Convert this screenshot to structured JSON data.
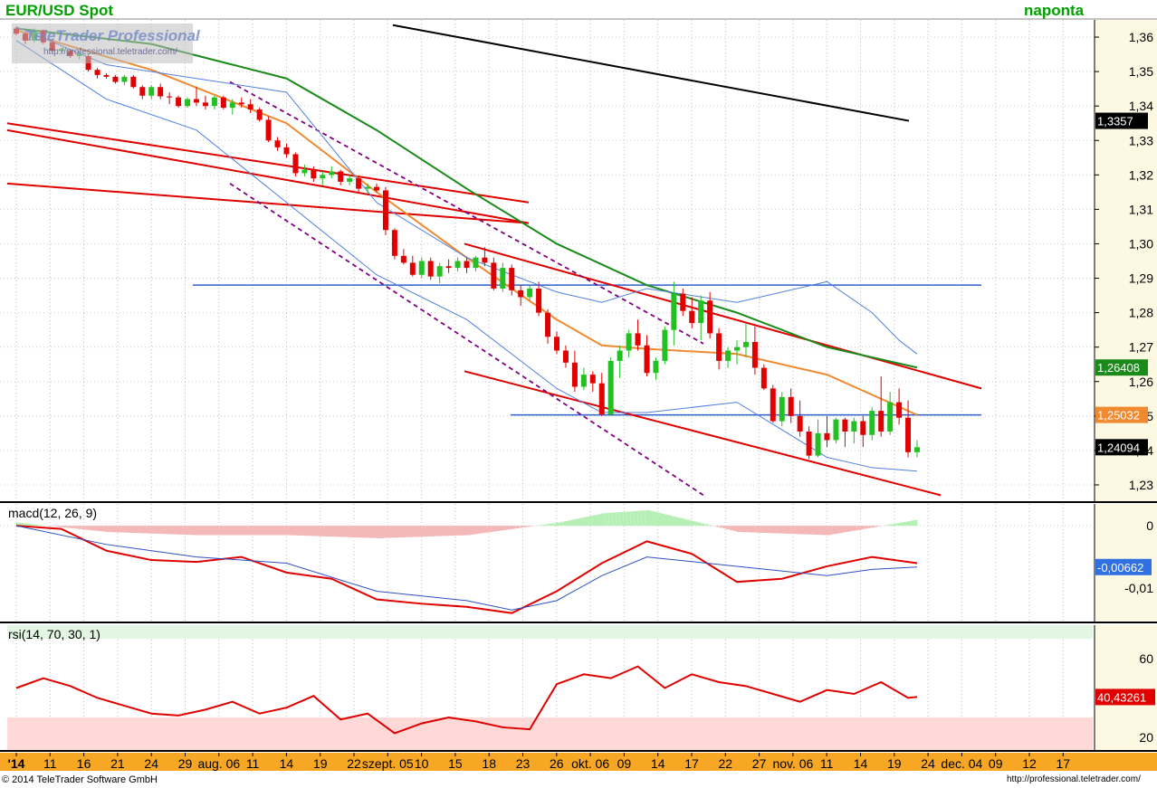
{
  "header": {
    "title": "EUR/USD Spot",
    "subtitle": "naponta",
    "watermark_line1": "TeleTrader Professional",
    "watermark_line2": "http://professional.teletrader.com/"
  },
  "footer": {
    "copyright": "© 2014  TeleTrader Software GmbH",
    "url": "http://professional.teletrader.com/"
  },
  "colors": {
    "bull": "#22c022",
    "bear": "#e00000",
    "price_axis_bg": "#fdf8e2",
    "date_axis_bg": "#f7a723",
    "channel": "#e00000",
    "dashed_channel": "#800080",
    "horizontal_line": "#3060d0",
    "sma_black": "#000000",
    "sma_green": "#1a8a1a",
    "sma_orange": "#f08a30",
    "bollinger": "#5080e0"
  },
  "chart_data": [
    {
      "type": "candlestick",
      "name": "price",
      "title": "EUR/USD Spot",
      "ylim": [
        1.225,
        1.365
      ],
      "ylabel": "",
      "yticks": [
        "1,23",
        "1,24",
        "1,25",
        "1,26",
        "1,27",
        "1,28",
        "1,29",
        "1,30",
        "1,31",
        "1,32",
        "1,33",
        "1,34",
        "1,35",
        "1,36"
      ],
      "xticks": [
        "'14",
        "11",
        "16",
        "21",
        "24",
        "29",
        "aug. 06",
        "11",
        "14",
        "19",
        "22",
        "szept. 05",
        "10",
        "15",
        "18",
        "23",
        "26",
        "okt. 06",
        "09",
        "14",
        "17",
        "22",
        "27",
        "nov. 06",
        "11",
        "14",
        "19",
        "24",
        "dec. 04",
        "09",
        "12",
        "17"
      ],
      "candles": [
        [
          1.3625,
          1.363,
          1.3605,
          1.361
        ],
        [
          1.361,
          1.3615,
          1.358,
          1.359
        ],
        [
          1.359,
          1.3625,
          1.3585,
          1.362
        ],
        [
          1.362,
          1.3622,
          1.358,
          1.3585
        ],
        [
          1.3585,
          1.359,
          1.3555,
          1.356
        ],
        [
          1.356,
          1.357,
          1.3555,
          1.3565
        ],
        [
          1.356,
          1.3565,
          1.354,
          1.3545
        ],
        [
          1.3545,
          1.356,
          1.3535,
          1.355
        ],
        [
          1.3545,
          1.355,
          1.35,
          1.3505
        ],
        [
          1.3505,
          1.351,
          1.348,
          1.349
        ],
        [
          1.349,
          1.3495,
          1.348,
          1.3485
        ],
        [
          1.3485,
          1.349,
          1.3465,
          1.347
        ],
        [
          1.347,
          1.349,
          1.346,
          1.3485
        ],
        [
          1.3485,
          1.349,
          1.345,
          1.3455
        ],
        [
          1.3455,
          1.346,
          1.342,
          1.343
        ],
        [
          1.343,
          1.346,
          1.342,
          1.3455
        ],
        [
          1.3455,
          1.3465,
          1.342,
          1.3428
        ],
        [
          1.3428,
          1.344,
          1.3405,
          1.3425
        ],
        [
          1.3425,
          1.343,
          1.3395,
          1.34
        ],
        [
          1.34,
          1.3425,
          1.3395,
          1.342
        ],
        [
          1.342,
          1.3455,
          1.34,
          1.341
        ],
        [
          1.341,
          1.343,
          1.339,
          1.34
        ],
        [
          1.34,
          1.343,
          1.339,
          1.3425
        ],
        [
          1.3425,
          1.343,
          1.339,
          1.3395
        ],
        [
          1.3395,
          1.342,
          1.3375,
          1.341
        ],
        [
          1.341,
          1.3425,
          1.3395,
          1.3405
        ],
        [
          1.3405,
          1.342,
          1.338,
          1.339
        ],
        [
          1.339,
          1.3395,
          1.3355,
          1.336
        ],
        [
          1.336,
          1.337,
          1.3295,
          1.33
        ],
        [
          1.33,
          1.331,
          1.327,
          1.328
        ],
        [
          1.328,
          1.329,
          1.325,
          1.326
        ],
        [
          1.326,
          1.3265,
          1.3195,
          1.3205
        ],
        [
          1.3205,
          1.323,
          1.3195,
          1.3215
        ],
        [
          1.3215,
          1.3225,
          1.318,
          1.319
        ],
        [
          1.319,
          1.321,
          1.317,
          1.32
        ],
        [
          1.32,
          1.3225,
          1.319,
          1.321
        ],
        [
          1.321,
          1.3215,
          1.317,
          1.318
        ],
        [
          1.318,
          1.32,
          1.317,
          1.319
        ],
        [
          1.319,
          1.3195,
          1.315,
          1.316
        ],
        [
          1.316,
          1.3175,
          1.3145,
          1.3165
        ],
        [
          1.3165,
          1.3175,
          1.315,
          1.3155
        ],
        [
          1.3155,
          1.3165,
          1.3025,
          1.304
        ],
        [
          1.304,
          1.3045,
          1.2955,
          1.2965
        ],
        [
          1.2965,
          1.2985,
          1.294,
          1.2945
        ],
        [
          1.2945,
          1.2965,
          1.2905,
          1.291
        ],
        [
          1.291,
          1.296,
          1.29,
          1.295
        ],
        [
          1.295,
          1.296,
          1.2895,
          1.2905
        ],
        [
          1.2905,
          1.2945,
          1.2885,
          1.2935
        ],
        [
          1.2935,
          1.2955,
          1.2915,
          1.293
        ],
        [
          1.293,
          1.296,
          1.292,
          1.295
        ],
        [
          1.295,
          1.296,
          1.2915,
          1.293
        ],
        [
          1.293,
          1.2965,
          1.292,
          1.296
        ],
        [
          1.296,
          1.299,
          1.2935,
          1.2945
        ],
        [
          1.2945,
          1.296,
          1.2865,
          1.287
        ],
        [
          1.287,
          1.2945,
          1.286,
          1.293
        ],
        [
          1.293,
          1.294,
          1.285,
          1.2865
        ],
        [
          1.2865,
          1.288,
          1.282,
          1.2845
        ],
        [
          1.2845,
          1.288,
          1.2835,
          1.287
        ],
        [
          1.287,
          1.289,
          1.279,
          1.28
        ],
        [
          1.28,
          1.281,
          1.271,
          1.273
        ],
        [
          1.273,
          1.2745,
          1.268,
          1.269
        ],
        [
          1.269,
          1.2705,
          1.264,
          1.2655
        ],
        [
          1.2655,
          1.269,
          1.257,
          1.2585
        ],
        [
          1.2585,
          1.264,
          1.2575,
          1.262
        ],
        [
          1.262,
          1.263,
          1.257,
          1.2595
        ],
        [
          1.2595,
          1.2625,
          1.25,
          1.2505
        ],
        [
          1.2505,
          1.267,
          1.25,
          1.266
        ],
        [
          1.266,
          1.2705,
          1.261,
          1.269
        ],
        [
          1.269,
          1.275,
          1.267,
          1.274
        ],
        [
          1.274,
          1.278,
          1.269,
          1.2705
        ],
        [
          1.2705,
          1.2735,
          1.2615,
          1.2625
        ],
        [
          1.2625,
          1.267,
          1.2605,
          1.266
        ],
        [
          1.266,
          1.276,
          1.265,
          1.275
        ],
        [
          1.275,
          1.289,
          1.2705,
          1.2855
        ],
        [
          1.2855,
          1.287,
          1.279,
          1.2805
        ],
        [
          1.2805,
          1.2845,
          1.2755,
          1.277
        ],
        [
          1.277,
          1.285,
          1.272,
          1.2835
        ],
        [
          1.2835,
          1.286,
          1.2725,
          1.274
        ],
        [
          1.274,
          1.2755,
          1.2635,
          1.266
        ],
        [
          1.266,
          1.27,
          1.264,
          1.269
        ],
        [
          1.269,
          1.272,
          1.265,
          1.27
        ],
        [
          1.27,
          1.277,
          1.267,
          1.2715
        ],
        [
          1.2715,
          1.276,
          1.262,
          1.264
        ],
        [
          1.264,
          1.265,
          1.2575,
          1.258
        ],
        [
          1.258,
          1.259,
          1.248,
          1.2485
        ],
        [
          1.2485,
          1.257,
          1.247,
          1.2555
        ],
        [
          1.2555,
          1.258,
          1.248,
          1.25
        ],
        [
          1.25,
          1.2545,
          1.244,
          1.2455
        ],
        [
          1.2455,
          1.247,
          1.2375,
          1.2385
        ],
        [
          1.2385,
          1.249,
          1.238,
          1.245
        ],
        [
          1.245,
          1.25,
          1.241,
          1.243
        ],
        [
          1.243,
          1.2495,
          1.242,
          1.249
        ],
        [
          1.249,
          1.2495,
          1.241,
          1.2455
        ],
        [
          1.2455,
          1.2495,
          1.242,
          1.2485
        ],
        [
          1.2485,
          1.25,
          1.241,
          1.2445
        ],
        [
          1.2445,
          1.2525,
          1.243,
          1.2515
        ],
        [
          1.2515,
          1.2615,
          1.244,
          1.2455
        ],
        [
          1.2455,
          1.257,
          1.2445,
          1.254
        ],
        [
          1.254,
          1.258,
          1.2475,
          1.2495
        ],
        [
          1.2495,
          1.2545,
          1.238,
          1.2395
        ],
        [
          1.2395,
          1.243,
          1.238,
          1.24094
        ]
      ],
      "series": [
        {
          "name": "",
          "color": "#000000",
          "x": [
            88,
            100
          ],
          "values": [
            1.3635,
            1.3357
          ]
        },
        {
          "name": "",
          "color": "#1a8a1a",
          "x": [
            0,
            15,
            30,
            40,
            50,
            60,
            70,
            80,
            90,
            100
          ],
          "values": [
            1.3625,
            1.358,
            1.348,
            1.333,
            1.316,
            1.3,
            1.288,
            1.28,
            1.27,
            1.26408
          ]
        },
        {
          "name": "",
          "color": "#f08a30",
          "x": [
            0,
            15,
            30,
            40,
            50,
            60,
            65,
            70,
            80,
            90,
            100
          ],
          "values": [
            1.362,
            1.3505,
            1.335,
            1.315,
            1.296,
            1.278,
            1.2705,
            1.2695,
            1.268,
            1.262,
            1.25032
          ]
        },
        {
          "name": "",
          "color": "#5080e0",
          "x": [
            0,
            10,
            20,
            30,
            40,
            50,
            60,
            65,
            70,
            80,
            90,
            95,
            98,
            100
          ],
          "values": [
            1.363,
            1.352,
            1.348,
            1.344,
            1.312,
            1.296,
            1.286,
            1.283,
            1.287,
            1.283,
            1.289,
            1.28,
            1.272,
            1.268
          ]
        },
        {
          "name": "",
          "color": "#5080e0",
          "x": [
            0,
            10,
            20,
            30,
            40,
            50,
            60,
            65,
            70,
            80,
            90,
            95,
            100
          ],
          "values": [
            1.359,
            1.342,
            1.333,
            1.312,
            1.291,
            1.278,
            1.258,
            1.251,
            1.251,
            1.254,
            1.238,
            1.235,
            1.234
          ]
        }
      ],
      "channels": [
        {
          "color": "#e00000",
          "dashed": false,
          "points": [
            [
              1.36,
              1.33
            ]
          ]
        },
        {
          "color": "#e00000",
          "dashed": false,
          "points": [
            [
              1.3445,
              1.306
            ]
          ]
        },
        {
          "color": "#e00000",
          "dashed": false,
          "points": [
            [
              1.3175,
              1.278
            ]
          ]
        },
        {
          "color": "#e00000",
          "dashed": false,
          "points": [
            [
              1.2995,
              1.2585
            ]
          ]
        },
        {
          "color": "#e00000",
          "dashed": false,
          "points": [
            [
              1.2635,
              1.227
            ]
          ]
        },
        {
          "color": "#800080",
          "dashed": true,
          "points": [
            [
              1.346,
              1.257
            ]
          ]
        },
        {
          "color": "#800080",
          "dashed": true,
          "points": [
            [
              1.3175,
              1.227
            ]
          ]
        }
      ],
      "hlines": [
        {
          "value": 1.288,
          "color": "#3060d0"
        },
        {
          "value": 1.2503,
          "color": "#3060d0"
        }
      ],
      "value_labels": [
        {
          "text": "1,3357",
          "value": 1.3357,
          "bg": "#000000"
        },
        {
          "text": "1,26408",
          "value": 1.26408,
          "bg": "#1a8a1a"
        },
        {
          "text": "1,25032",
          "value": 1.25032,
          "bg": "#f08a30"
        },
        {
          "text": "1,24094",
          "value": 1.24094,
          "bg": "#000000"
        }
      ]
    },
    {
      "type": "line",
      "name": "macd",
      "title": "macd(12, 26, 9)",
      "ylim": [
        -0.0155,
        0.0035
      ],
      "yticks": [
        {
          "text": "0",
          "value": 0
        },
        {
          "text": "-0,01",
          "value": -0.01
        }
      ],
      "series": [
        {
          "name": "",
          "color": "#e00000",
          "x": [
            0,
            5,
            10,
            15,
            20,
            25,
            30,
            35,
            40,
            45,
            50,
            55,
            60,
            65,
            70,
            75,
            80,
            85,
            90,
            95,
            100
          ],
          "values": [
            0.0,
            -0.0005,
            -0.004,
            -0.0055,
            -0.0058,
            -0.005,
            -0.0075,
            -0.0085,
            -0.0118,
            -0.0125,
            -0.013,
            -0.014,
            -0.0105,
            -0.006,
            -0.0025,
            -0.0045,
            -0.009,
            -0.0085,
            -0.0065,
            -0.005,
            -0.006
          ]
        },
        {
          "name": "",
          "color": "#3050c0",
          "x": [
            0,
            10,
            20,
            30,
            40,
            50,
            55,
            60,
            65,
            70,
            80,
            90,
            95,
            100
          ],
          "values": [
            0.0,
            -0.003,
            -0.005,
            -0.006,
            -0.0105,
            -0.012,
            -0.0135,
            -0.012,
            -0.008,
            -0.005,
            -0.0065,
            -0.008,
            -0.007,
            -0.00662
          ]
        }
      ],
      "histogram": {
        "x": [
          0,
          10,
          20,
          30,
          40,
          50,
          55,
          60,
          65,
          70,
          80,
          90,
          100
        ],
        "values": [
          0.0005,
          -0.001,
          -0.0015,
          -0.0015,
          -0.002,
          -0.0015,
          -0.0005,
          0.0005,
          0.002,
          0.0025,
          -0.001,
          -0.0015,
          0.001
        ]
      },
      "value_label": {
        "text": "-0,00662",
        "value": -0.00662
      }
    },
    {
      "type": "line",
      "name": "rsi",
      "title": "rsi(14, 70, 30, 1)",
      "ylim": [
        13,
        77
      ],
      "yticks": [
        {
          "text": "60",
          "value": 60
        },
        {
          "text": "40",
          "value": 40
        },
        {
          "text": "20",
          "value": 20
        }
      ],
      "bands": {
        "upper": 70,
        "lower": 30
      },
      "series": [
        {
          "name": "",
          "color": "#e00000",
          "x": [
            0,
            3,
            6,
            9,
            12,
            15,
            18,
            21,
            24,
            27,
            30,
            33,
            36,
            39,
            42,
            45,
            48,
            51,
            54,
            57,
            60,
            63,
            66,
            69,
            72,
            75,
            78,
            81,
            84,
            87,
            90,
            93,
            96,
            99,
            100
          ],
          "values": [
            45,
            50,
            46,
            40,
            36,
            32,
            31,
            34,
            38,
            32,
            35,
            41,
            29,
            32,
            22,
            27,
            30,
            28,
            25,
            24,
            47,
            52,
            50,
            56,
            45,
            52,
            48,
            46,
            42,
            38,
            44,
            42,
            48,
            40,
            40.43261
          ]
        }
      ],
      "value_label": {
        "text": "40,43261",
        "value": 40.43261
      }
    }
  ]
}
